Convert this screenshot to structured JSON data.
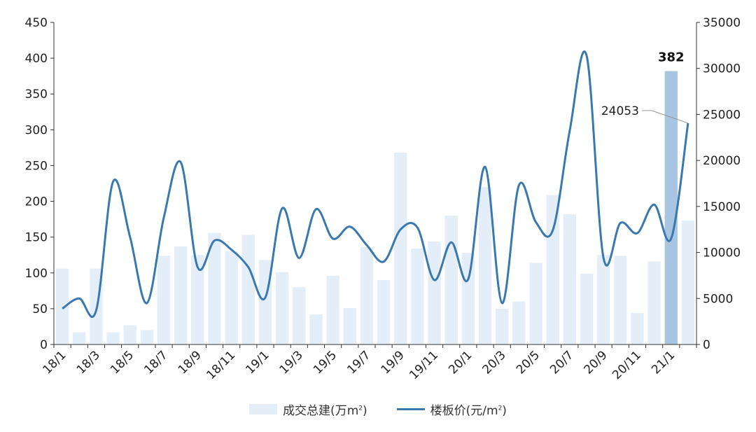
{
  "chart_data": {
    "type": "bar",
    "x_tick_labels": [
      "18/1",
      "18/3",
      "18/5",
      "18/7",
      "18/9",
      "18/11",
      "19/1",
      "19/3",
      "19/5",
      "19/7",
      "19/9",
      "19/11",
      "20/1",
      "20/3",
      "20/5",
      "20/7",
      "20/9",
      "20/11",
      "21/1"
    ],
    "categories": [
      "18/1",
      "18/2",
      "18/3",
      "18/4",
      "18/5",
      "18/6",
      "18/7",
      "18/8",
      "18/9",
      "18/10",
      "18/11",
      "18/12",
      "19/1",
      "19/2",
      "19/3",
      "19/4",
      "19/5",
      "19/6",
      "19/7",
      "19/8",
      "19/9",
      "19/10",
      "19/11",
      "19/12",
      "20/1",
      "20/2",
      "20/3",
      "20/4",
      "20/5",
      "20/6",
      "20/7",
      "20/8",
      "20/9",
      "20/10",
      "20/11",
      "20/12",
      "21/1",
      "21/2"
    ],
    "series": [
      {
        "name": "成交总建(万m²)",
        "type": "bar",
        "axis": "left",
        "color": "#e3eef8",
        "values": [
          106,
          17,
          106,
          17,
          27,
          20,
          124,
          137,
          125,
          156,
          130,
          153,
          118,
          101,
          80,
          42,
          96,
          51,
          136,
          90,
          268,
          134,
          144,
          180,
          128,
          220,
          50,
          60,
          114,
          209,
          182,
          99,
          125,
          124,
          44,
          116,
          382,
          173
        ]
      },
      {
        "name": "楼板价(元/m²)",
        "type": "line",
        "axis": "right",
        "color": "#3a78b0",
        "values": [
          3900,
          5000,
          3700,
          17700,
          11700,
          4500,
          13800,
          19800,
          8400,
          11300,
          10300,
          8400,
          5100,
          14800,
          9400,
          14700,
          11500,
          12800,
          10800,
          9000,
          12500,
          12700,
          7000,
          11100,
          7100,
          19300,
          4500,
          17300,
          13300,
          12400,
          23200,
          31400,
          9400,
          13200,
          12100,
          15200,
          11500,
          24053
        ]
      }
    ],
    "highlight": {
      "category": "21/1",
      "series": 0,
      "color": "#a8c6e2",
      "label": "382"
    },
    "annotation": {
      "text": "24053",
      "series": 1,
      "category": "21/2"
    },
    "ylim_left": [
      0,
      450
    ],
    "yticks_left": [
      0,
      50,
      100,
      150,
      200,
      250,
      300,
      350,
      400,
      450
    ],
    "ylim_right": [
      0,
      35000
    ],
    "yticks_right": [
      0,
      5000,
      10000,
      15000,
      20000,
      25000,
      30000,
      35000
    ],
    "grid": false,
    "legend_position": "bottom-center",
    "legend": [
      {
        "text": "成交总建(万m",
        "sup": "2",
        "close": ")"
      },
      {
        "text": "楼板价(元/m",
        "sup": "2",
        "close": ")"
      }
    ]
  }
}
